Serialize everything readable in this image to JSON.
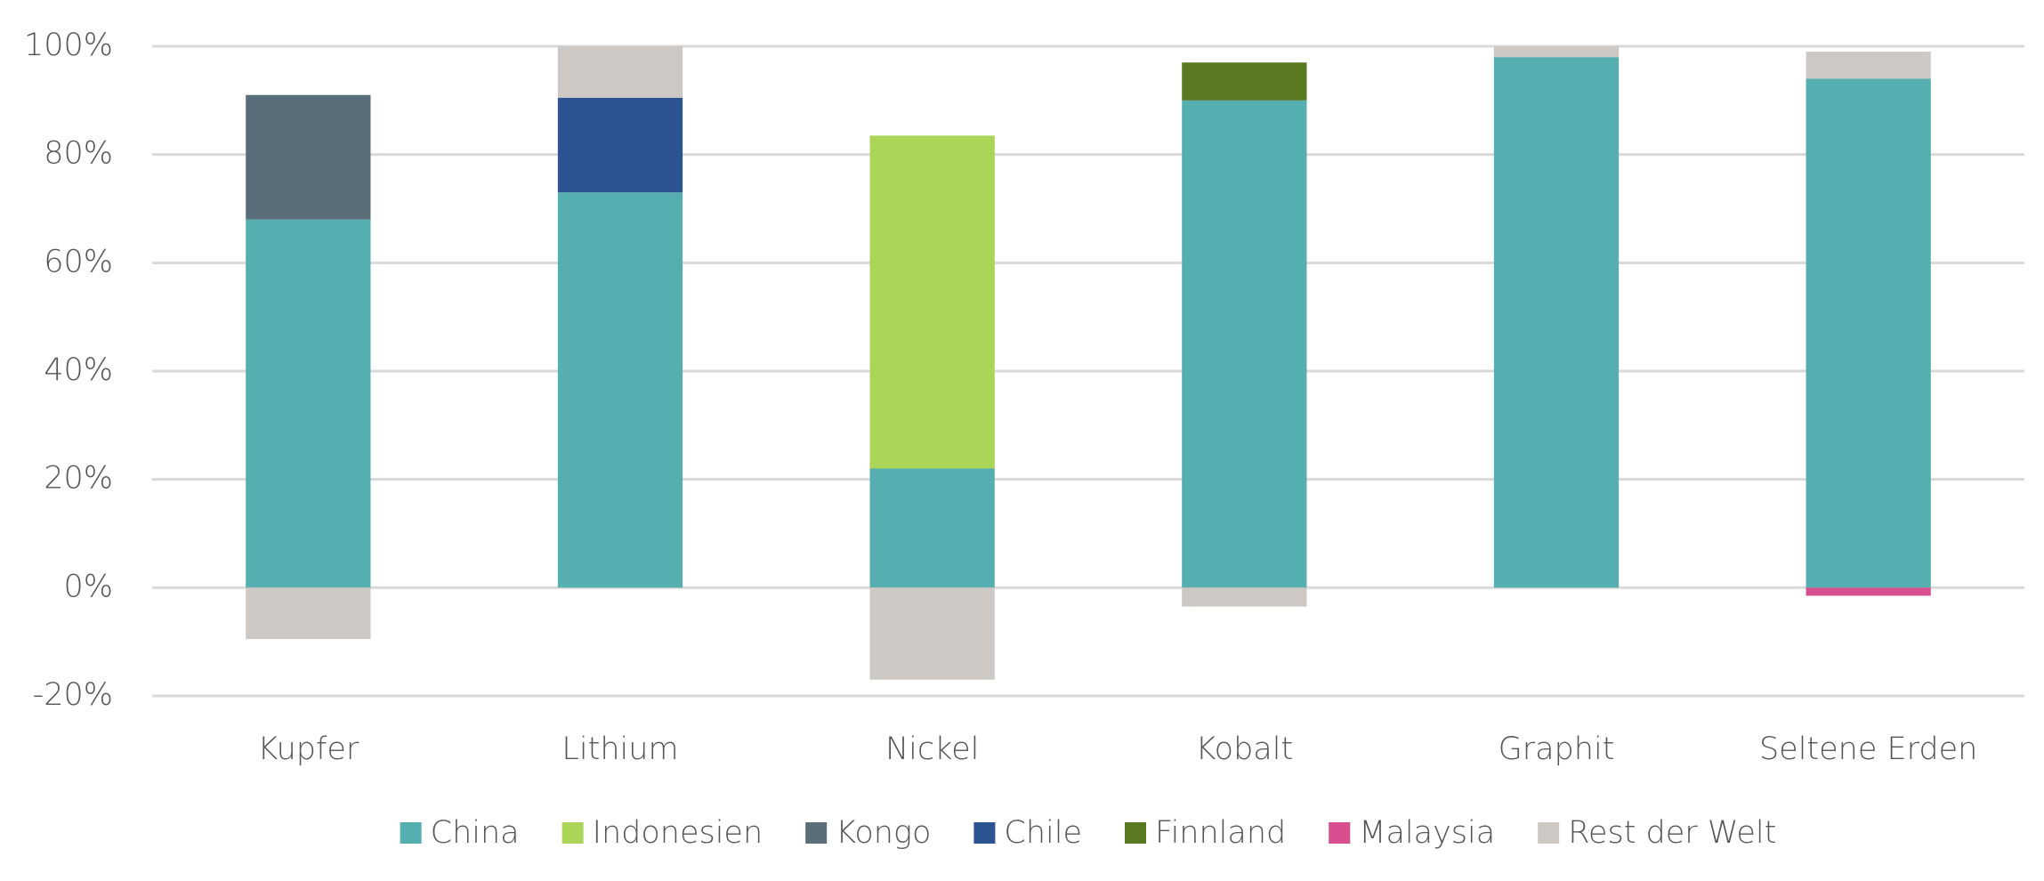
{
  "chart_data": {
    "type": "stacked_bar",
    "categories": [
      "Kupfer",
      "Lithium",
      "Nickel",
      "Kobalt",
      "Graphit",
      "Seltene Erden"
    ],
    "series": [
      {
        "name": "China",
        "color": "#55aeb0",
        "values": [
          68,
          73,
          22,
          90,
          98,
          94
        ]
      },
      {
        "name": "Indonesien",
        "color": "#aad556",
        "values": [
          null,
          null,
          61.5,
          null,
          null,
          null
        ]
      },
      {
        "name": "Kongo",
        "color": "#5a6e79",
        "values": [
          23,
          null,
          null,
          null,
          null,
          null
        ]
      },
      {
        "name": "Chile",
        "color": "#2c5391",
        "values": [
          null,
          17.5,
          null,
          null,
          null,
          null
        ]
      },
      {
        "name": "Finnland",
        "color": "#5a7a22",
        "values": [
          null,
          null,
          null,
          7,
          null,
          null
        ]
      },
      {
        "name": "Malaysia",
        "color": "#d84f8f",
        "values": [
          null,
          null,
          null,
          null,
          null,
          -1.5
        ]
      },
      {
        "name": "Rest der Welt",
        "color": "#cdc8c3",
        "values": [
          -9.5,
          9.5,
          -17,
          -3.5,
          2,
          5
        ]
      }
    ],
    "ylim": [
      -20,
      100
    ],
    "yticks": [
      {
        "value": -20,
        "label": "-20%"
      },
      {
        "value": 0,
        "label": "0%"
      },
      {
        "value": 20,
        "label": "20%"
      },
      {
        "value": 40,
        "label": "40%"
      },
      {
        "value": 60,
        "label": "60%"
      },
      {
        "value": 80,
        "label": "80%"
      },
      {
        "value": 100,
        "label": "100%"
      }
    ],
    "grid": true,
    "legend": "bottom"
  }
}
